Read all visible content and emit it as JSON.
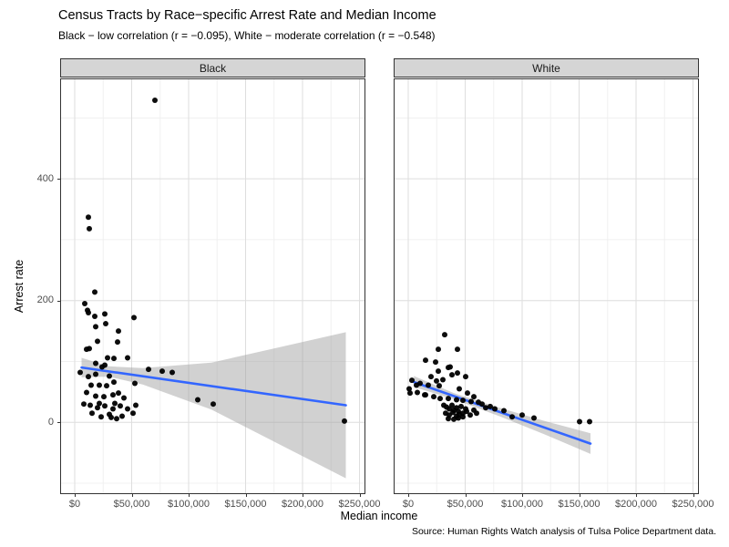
{
  "chart_data": {
    "type": "scatter",
    "title": "Census Tracts by Race−specific Arrest Rate and Median Income",
    "subtitle": "Black − low correlation (r = −0.095), White − moderate correlation (r = −0.548)",
    "caption": "Source: Human Rights Watch analysis of Tulsa Police Department data.",
    "xlabel": "Median income",
    "ylabel": "Arrest rate",
    "legend": "none",
    "grid": true,
    "x_domain": [
      -12800,
      255200
    ],
    "y_domain": [
      -118,
      565
    ],
    "x_ticks": [
      {
        "value": 0,
        "label": "$0"
      },
      {
        "value": 50000,
        "label": "$50,000"
      },
      {
        "value": 100000,
        "label": "$100,000"
      },
      {
        "value": 150000,
        "label": "$150,000"
      },
      {
        "value": 200000,
        "label": "$200,000"
      },
      {
        "value": 250000,
        "label": "$250,000"
      }
    ],
    "y_ticks": [
      {
        "value": 0,
        "label": "0"
      },
      {
        "value": 200,
        "label": "200"
      },
      {
        "value": 400,
        "label": "400"
      }
    ],
    "x_minor": [
      25000,
      75000,
      125000,
      175000,
      225000
    ],
    "y_minor": [
      -100,
      100,
      300,
      500
    ],
    "colors": {
      "point": "#000000",
      "trend": "#3366FF",
      "band": "#999999",
      "band_opacity": 0.45,
      "grid_major": "#dedede",
      "grid_minor": "#f0f0f0",
      "strip_bg": "#d5d5d5",
      "panel_border": "#333333"
    },
    "panels": [
      {
        "label": "Black",
        "points": [
          [
            70400,
            529
          ],
          [
            12000,
            337
          ],
          [
            12800,
            318
          ],
          [
            17600,
            214
          ],
          [
            8800,
            195
          ],
          [
            11200,
            184
          ],
          [
            12000,
            180
          ],
          [
            26400,
            178
          ],
          [
            17600,
            174
          ],
          [
            52000,
            172
          ],
          [
            27200,
            162
          ],
          [
            18400,
            157
          ],
          [
            38400,
            150
          ],
          [
            20000,
            133
          ],
          [
            37600,
            132
          ],
          [
            12800,
            121
          ],
          [
            10400,
            120
          ],
          [
            28800,
            106
          ],
          [
            34400,
            105
          ],
          [
            46400,
            106
          ],
          [
            18400,
            97
          ],
          [
            26400,
            94
          ],
          [
            24000,
            91
          ],
          [
            4800,
            82
          ],
          [
            12000,
            75
          ],
          [
            18400,
            79
          ],
          [
            30400,
            76
          ],
          [
            34400,
            66
          ],
          [
            14400,
            61
          ],
          [
            21600,
            61
          ],
          [
            28000,
            60
          ],
          [
            64800,
            87
          ],
          [
            76800,
            84
          ],
          [
            85600,
            82
          ],
          [
            52800,
            64
          ],
          [
            10400,
            49
          ],
          [
            18400,
            43
          ],
          [
            25600,
            42
          ],
          [
            33600,
            45
          ],
          [
            38400,
            48
          ],
          [
            43200,
            40
          ],
          [
            8000,
            30
          ],
          [
            13600,
            28
          ],
          [
            20000,
            24
          ],
          [
            26400,
            27
          ],
          [
            33600,
            22
          ],
          [
            40000,
            27
          ],
          [
            46400,
            22
          ],
          [
            53600,
            28
          ],
          [
            21600,
            31
          ],
          [
            35200,
            31
          ],
          [
            15200,
            15
          ],
          [
            23200,
            9
          ],
          [
            32000,
            8
          ],
          [
            41600,
            10
          ],
          [
            51200,
            15
          ],
          [
            30400,
            13
          ],
          [
            36800,
            6
          ],
          [
            108000,
            37
          ],
          [
            121600,
            30
          ],
          [
            236800,
            2
          ]
        ],
        "trend": {
          "x": [
            6000,
            238000
          ],
          "y": [
            90,
            28
          ]
        },
        "band": {
          "x": [
            6000,
            30000,
            60000,
            120000,
            238000
          ],
          "upper": [
            106,
            92,
            89,
            98,
            148
          ],
          "lower": [
            74,
            75,
            62,
            21,
            -92
          ]
        }
      },
      {
        "label": "White",
        "points": [
          [
            32000,
            144
          ],
          [
            26400,
            120
          ],
          [
            43200,
            120
          ],
          [
            15200,
            102
          ],
          [
            24000,
            99
          ],
          [
            35200,
            90
          ],
          [
            36800,
            91
          ],
          [
            26400,
            84
          ],
          [
            38400,
            78
          ],
          [
            43200,
            81
          ],
          [
            50400,
            75
          ],
          [
            20000,
            75
          ],
          [
            30400,
            70
          ],
          [
            24800,
            68
          ],
          [
            7200,
            61
          ],
          [
            1600,
            48
          ],
          [
            14400,
            45
          ],
          [
            3200,
            69
          ],
          [
            10400,
            64
          ],
          [
            17600,
            61
          ],
          [
            27200,
            60
          ],
          [
            800,
            55
          ],
          [
            8000,
            49
          ],
          [
            15200,
            45
          ],
          [
            22400,
            42
          ],
          [
            28000,
            39
          ],
          [
            35200,
            39
          ],
          [
            42400,
            37
          ],
          [
            48000,
            36
          ],
          [
            55200,
            34
          ],
          [
            61600,
            33
          ],
          [
            44800,
            55
          ],
          [
            52000,
            48
          ],
          [
            57600,
            42
          ],
          [
            31200,
            28
          ],
          [
            33600,
            25
          ],
          [
            36000,
            22
          ],
          [
            38400,
            28
          ],
          [
            40000,
            20
          ],
          [
            42400,
            24
          ],
          [
            44000,
            18
          ],
          [
            46400,
            26
          ],
          [
            48000,
            15
          ],
          [
            50400,
            22
          ],
          [
            32800,
            15
          ],
          [
            36000,
            12
          ],
          [
            39200,
            16
          ],
          [
            42400,
            10
          ],
          [
            44800,
            13
          ],
          [
            48000,
            9
          ],
          [
            51200,
            18
          ],
          [
            54400,
            12
          ],
          [
            57600,
            20
          ],
          [
            60000,
            15
          ],
          [
            35200,
            6
          ],
          [
            40000,
            5
          ],
          [
            44000,
            7
          ],
          [
            64800,
            30
          ],
          [
            68000,
            24
          ],
          [
            72000,
            26
          ],
          [
            76000,
            22
          ],
          [
            84000,
            19
          ],
          [
            91200,
            9
          ],
          [
            100000,
            12
          ],
          [
            110400,
            7
          ],
          [
            150400,
            1
          ],
          [
            159200,
            1
          ]
        ],
        "trend": {
          "x": [
            5000,
            160000
          ],
          "y": [
            66,
            -35
          ]
        },
        "band": {
          "x": [
            5000,
            40000,
            80000,
            120000,
            160000
          ],
          "upper": [
            76,
            48,
            24,
            2,
            -18
          ],
          "lower": [
            58,
            38,
            10,
            -20,
            -52
          ]
        }
      }
    ]
  }
}
